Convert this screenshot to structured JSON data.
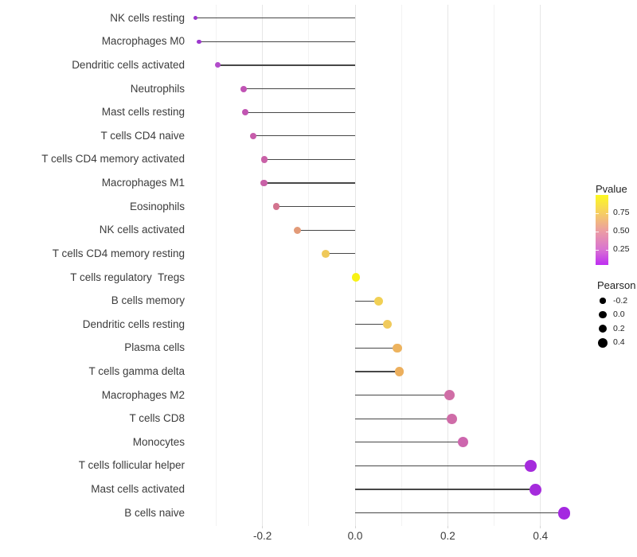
{
  "chart_data": {
    "type": "scatter",
    "subtype": "lollipop",
    "title": "",
    "xlabel": "",
    "ylabel": "",
    "x_tick_labels": [
      "-0.2",
      "0.0",
      "0.2",
      "0.4"
    ],
    "x_tick_values": [
      -0.2,
      0.0,
      0.2,
      0.4
    ],
    "xlim": [
      -0.385,
      0.49
    ],
    "grid": "vertical major and minor, no horizontal",
    "rows": [
      {
        "label": "NK cells resting",
        "pearson": -0.345,
        "dot_color": "#9A35CB",
        "dot_size": 5
      },
      {
        "label": "Macrophages M0",
        "pearson": -0.337,
        "dot_color": "#9D38CE",
        "dot_size": 5.5
      },
      {
        "label": "Dendritic cells activated",
        "pearson": -0.297,
        "dot_color": "#B24CCB",
        "dot_size": 7
      },
      {
        "label": "Neutrophils",
        "pearson": -0.24,
        "dot_color": "#C053B4",
        "dot_size": 8
      },
      {
        "label": "Mast cells resting",
        "pearson": -0.237,
        "dot_color": "#C155B2",
        "dot_size": 8
      },
      {
        "label": "T cells CD4 naive",
        "pearson": -0.22,
        "dot_color": "#C75CAB",
        "dot_size": 8.2
      },
      {
        "label": "T cells CD4 memory activated",
        "pearson": -0.196,
        "dot_color": "#C961A7",
        "dot_size": 8.5
      },
      {
        "label": "Macrophages M1",
        "pearson": -0.197,
        "dot_color": "#C961A7",
        "dot_size": 8.5
      },
      {
        "label": "Eosinophils",
        "pearson": -0.17,
        "dot_color": "#D3748F",
        "dot_size": 8.8
      },
      {
        "label": "NK cells activated",
        "pearson": -0.124,
        "dot_color": "#E29A78",
        "dot_size": 9.2
      },
      {
        "label": "T cells CD4 memory resting",
        "pearson": -0.064,
        "dot_color": "#EFC95A",
        "dot_size": 9.8
      },
      {
        "label": "T cells regulatory  Tregs",
        "pearson": 0.002,
        "dot_color": "#F8F215",
        "dot_size": 10.5
      },
      {
        "label": "B cells memory",
        "pearson": 0.05,
        "dot_color": "#F1D055",
        "dot_size": 11
      },
      {
        "label": "Dendritic cells resting",
        "pearson": 0.07,
        "dot_color": "#F0CA5C",
        "dot_size": 11.2
      },
      {
        "label": "Plasma cells",
        "pearson": 0.091,
        "dot_color": "#EDB35E",
        "dot_size": 11.4
      },
      {
        "label": "T cells gamma delta",
        "pearson": 0.095,
        "dot_color": "#ECAF5D",
        "dot_size": 11.5
      },
      {
        "label": "Macrophages M2",
        "pearson": 0.204,
        "dot_color": "#D06EA6",
        "dot_size": 12.8
      },
      {
        "label": "T cells CD8",
        "pearson": 0.209,
        "dot_color": "#CF6CA8",
        "dot_size": 12.8
      },
      {
        "label": "Monocytes",
        "pearson": 0.233,
        "dot_color": "#CD66AE",
        "dot_size": 13.1
      },
      {
        "label": "T cells follicular helper",
        "pearson": 0.379,
        "dot_color": "#A52BDC",
        "dot_size": 14.8
      },
      {
        "label": "Mast cells activated",
        "pearson": 0.389,
        "dot_color": "#A52BDC",
        "dot_size": 15
      },
      {
        "label": "B cells naive",
        "pearson": 0.451,
        "dot_color": "#A428E0",
        "dot_size": 15.8
      }
    ],
    "legend": {
      "pvalue": {
        "title": "Pvalue",
        "tick_labels": [
          "0.75",
          "0.50",
          "0.25"
        ],
        "gradient_top_to_bottom": [
          "#FCF921",
          "#F6CE63",
          "#EB9CA4",
          "#D973D1",
          "#BE2EF2"
        ]
      },
      "pearson": {
        "title": "Pearson",
        "entries": [
          {
            "label": "-0.2",
            "dot_size": 7.3
          },
          {
            "label": "0.0",
            "dot_size": 9.3
          },
          {
            "label": "0.2",
            "dot_size": 10.7
          },
          {
            "label": "0.4",
            "dot_size": 12
          }
        ]
      }
    },
    "colors": {
      "stem": "#474747",
      "gridline_major": "#e6e6e6",
      "gridline_minor": "#f2f2f2",
      "axis_text": "#3c3c3c",
      "legend_dot": "#000000",
      "background": "#ffffff"
    }
  }
}
